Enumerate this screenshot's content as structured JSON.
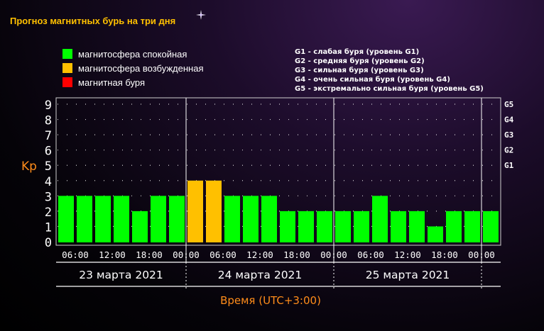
{
  "header": {
    "title": "Прогноз магнитных бурь на три дня"
  },
  "legend": [
    {
      "label": "магнитосфера спокойная",
      "color": "#00ff00"
    },
    {
      "label": "магнитосфера возбужденная",
      "color": "#ffc000"
    },
    {
      "label": "магнитная буря",
      "color": "#ff0000"
    }
  ],
  "g_legend": [
    "G1 - слабая буря (уровень G1)",
    "G2 - средняя буря (уровень G2)",
    "G3 - сильная буря (уровень G3)",
    "G4 - очень сильная буря (уровень G4)",
    "G5 - экстремально сильная буря (уровень G5)"
  ],
  "chart_data": {
    "type": "bar",
    "ylabel": "Kp",
    "xlabel": "Время (UTC+3:00)",
    "ylim": [
      0,
      9
    ],
    "yticks": [
      "0",
      "1",
      "2",
      "3",
      "4",
      "5",
      "6",
      "7",
      "8",
      "9"
    ],
    "g_levels": [
      {
        "label": "G1",
        "kp": 5
      },
      {
        "label": "G2",
        "kp": 6
      },
      {
        "label": "G3",
        "kp": 7
      },
      {
        "label": "G4",
        "kp": 8
      },
      {
        "label": "G5",
        "kp": 9
      }
    ],
    "days": [
      "23 марта 2021",
      "24 марта 2021",
      "25 марта 2021"
    ],
    "time_labels": [
      "06:00",
      "12:00",
      "18:00",
      "00:00",
      "06:00",
      "12:00",
      "18:00",
      "00:00",
      "06:00",
      "12:00",
      "18:00",
      "00:00"
    ],
    "intervals_per_day": 8,
    "start_interval": 1,
    "values": [
      3,
      3,
      3,
      3,
      2,
      3,
      3,
      4,
      4,
      3,
      3,
      3,
      2,
      2,
      2,
      2,
      2,
      3,
      2,
      2,
      1,
      2,
      2,
      2
    ],
    "colors": {
      "quiet": "#00ff00",
      "active": "#ffc000",
      "storm": "#ff0000",
      "axis_label": "#ff8c1a",
      "grid": "#ffffff"
    },
    "grid": true
  }
}
